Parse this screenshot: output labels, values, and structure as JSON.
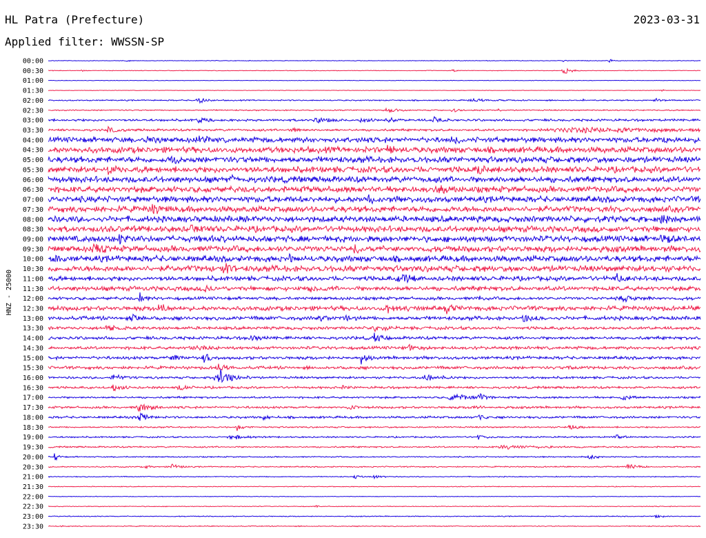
{
  "header": {
    "station": "HL Patra (Prefecture)",
    "date": "2023-03-31",
    "filter": "Applied filter: WWSSN-SP"
  },
  "chart_data": {
    "type": "line",
    "kind": "helicorder",
    "ylabel": "HNZ - 25000",
    "colors": {
      "even": "#1500e0",
      "odd": "#ee1b48"
    },
    "rows": [
      {
        "time": "00:00",
        "noise": 0.4,
        "events": [
          {
            "x": 0.12,
            "a": 2,
            "w": 0.004
          },
          {
            "x": 0.79,
            "a": 2,
            "w": 0.004
          },
          {
            "x": 0.86,
            "a": 4,
            "w": 0.004
          }
        ]
      },
      {
        "time": "00:30",
        "noise": 0.4,
        "events": [
          {
            "x": 0.05,
            "a": 2,
            "w": 0.004
          },
          {
            "x": 0.62,
            "a": 3,
            "w": 0.004
          },
          {
            "x": 0.79,
            "a": 6,
            "w": 0.012
          }
        ]
      },
      {
        "time": "01:00",
        "noise": 0.3,
        "events": []
      },
      {
        "time": "01:30",
        "noise": 0.3,
        "events": [
          {
            "x": 0.94,
            "a": 2,
            "w": 0.004
          }
        ]
      },
      {
        "time": "02:00",
        "noise": 0.8,
        "events": [
          {
            "x": 0.23,
            "a": 6,
            "w": 0.012
          },
          {
            "x": 0.65,
            "a": 2,
            "w": 0.03
          },
          {
            "x": 0.82,
            "a": 2,
            "w": 0.004
          },
          {
            "x": 0.93,
            "a": 4,
            "w": 0.008
          }
        ]
      },
      {
        "time": "02:30",
        "noise": 0.8,
        "events": [
          {
            "x": 0.52,
            "a": 5,
            "w": 0.012
          },
          {
            "x": 0.62,
            "a": 3,
            "w": 0.01
          },
          {
            "x": 0.69,
            "a": 2,
            "w": 0.006
          }
        ]
      },
      {
        "time": "03:00",
        "noise": 1.5,
        "events": [
          {
            "x": 0.23,
            "a": 6,
            "w": 0.01
          },
          {
            "x": 0.41,
            "a": 4,
            "w": 0.02
          },
          {
            "x": 0.48,
            "a": 4,
            "w": 0.01
          },
          {
            "x": 0.52,
            "a": 5,
            "w": 0.012
          },
          {
            "x": 0.59,
            "a": 4,
            "w": 0.01
          }
        ]
      },
      {
        "time": "03:30",
        "noise": 1.5,
        "events": [
          {
            "x": 0.09,
            "a": 5,
            "w": 0.012
          },
          {
            "x": 0.37,
            "a": 4,
            "w": 0.01
          },
          {
            "x": 0.81,
            "a": 3,
            "w": 0.2
          }
        ]
      },
      {
        "time": "04:00",
        "noise": 3.5,
        "events": [
          {
            "x": 0.15,
            "a": 5,
            "w": 0.01
          },
          {
            "x": 0.23,
            "a": 5,
            "w": 0.01
          },
          {
            "x": 0.62,
            "a": 5,
            "w": 0.01
          },
          {
            "x": 0.94,
            "a": 5,
            "w": 0.01
          }
        ]
      },
      {
        "time": "04:30",
        "noise": 4,
        "events": [
          {
            "x": 0.52,
            "a": 6,
            "w": 0.01
          }
        ]
      },
      {
        "time": "05:00",
        "noise": 4,
        "events": [
          {
            "x": 0.19,
            "a": 6,
            "w": 0.01
          }
        ]
      },
      {
        "time": "05:30",
        "noise": 4,
        "events": [
          {
            "x": 0.09,
            "a": 6,
            "w": 0.01
          },
          {
            "x": 0.66,
            "a": 6,
            "w": 0.01
          }
        ]
      },
      {
        "time": "06:00",
        "noise": 4,
        "events": [
          {
            "x": 0.28,
            "a": 7,
            "w": 0.004
          }
        ]
      },
      {
        "time": "06:30",
        "noise": 4,
        "events": [
          {
            "x": 0.6,
            "a": 6,
            "w": 0.01
          }
        ]
      },
      {
        "time": "07:00",
        "noise": 4,
        "events": [
          {
            "x": 0.49,
            "a": 6,
            "w": 0.01
          }
        ]
      },
      {
        "time": "07:30",
        "noise": 4,
        "events": [
          {
            "x": 0.16,
            "a": 6,
            "w": 0.01
          }
        ]
      },
      {
        "time": "08:00",
        "noise": 4,
        "events": [
          {
            "x": 0.94,
            "a": 6,
            "w": 0.01
          }
        ]
      },
      {
        "time": "08:30",
        "noise": 4,
        "events": [
          {
            "x": 0.22,
            "a": 6,
            "w": 0.01
          }
        ]
      },
      {
        "time": "09:00",
        "noise": 4,
        "events": [
          {
            "x": 0.11,
            "a": 7,
            "w": 0.01
          },
          {
            "x": 0.25,
            "a": 8,
            "w": 0.004
          },
          {
            "x": 0.94,
            "a": 6,
            "w": 0.012
          }
        ]
      },
      {
        "time": "09:30",
        "noise": 4,
        "events": [
          {
            "x": 0.07,
            "a": 6,
            "w": 0.01
          },
          {
            "x": 0.47,
            "a": 5,
            "w": 0.01
          }
        ]
      },
      {
        "time": "10:00",
        "noise": 4,
        "events": [
          {
            "x": 0.01,
            "a": 6,
            "w": 0.006
          },
          {
            "x": 0.37,
            "a": 6,
            "w": 0.004
          }
        ]
      },
      {
        "time": "10:30",
        "noise": 4,
        "events": [
          {
            "x": 0.27,
            "a": 6,
            "w": 0.01
          }
        ]
      },
      {
        "time": "11:00",
        "noise": 3,
        "events": [
          {
            "x": 0.54,
            "a": 7,
            "w": 0.02
          },
          {
            "x": 0.87,
            "a": 6,
            "w": 0.01
          }
        ]
      },
      {
        "time": "11:30",
        "noise": 3,
        "events": [
          {
            "x": 0.24,
            "a": 7,
            "w": 0.006
          },
          {
            "x": 0.4,
            "a": 6,
            "w": 0.01
          }
        ]
      },
      {
        "time": "12:00",
        "noise": 2,
        "events": [
          {
            "x": 0.14,
            "a": 8,
            "w": 0.008
          },
          {
            "x": 0.66,
            "a": 6,
            "w": 0.006
          },
          {
            "x": 0.88,
            "a": 4,
            "w": 0.02
          }
        ]
      },
      {
        "time": "12:30",
        "noise": 3,
        "events": [
          {
            "x": 0.17,
            "a": 6,
            "w": 0.01
          },
          {
            "x": 0.52,
            "a": 5,
            "w": 0.02
          },
          {
            "x": 0.61,
            "a": 6,
            "w": 0.01
          }
        ]
      },
      {
        "time": "13:00",
        "noise": 2.5,
        "events": [
          {
            "x": 0.13,
            "a": 4,
            "w": 0.01
          },
          {
            "x": 0.41,
            "a": 6,
            "w": 0.012
          },
          {
            "x": 0.45,
            "a": 5,
            "w": 0.012
          },
          {
            "x": 0.73,
            "a": 5,
            "w": 0.012
          }
        ]
      },
      {
        "time": "13:30",
        "noise": 2,
        "events": [
          {
            "x": 0.09,
            "a": 5,
            "w": 0.012
          },
          {
            "x": 0.5,
            "a": 4,
            "w": 0.02
          }
        ]
      },
      {
        "time": "14:00",
        "noise": 2,
        "events": [
          {
            "x": 0.31,
            "a": 5,
            "w": 0.01
          },
          {
            "x": 0.5,
            "a": 5,
            "w": 0.012
          }
        ]
      },
      {
        "time": "14:30",
        "noise": 2,
        "events": [
          {
            "x": 0.22,
            "a": 4,
            "w": 0.02
          },
          {
            "x": 0.55,
            "a": 5,
            "w": 0.014
          }
        ]
      },
      {
        "time": "15:00",
        "noise": 2,
        "events": [
          {
            "x": 0.19,
            "a": 5,
            "w": 0.01
          },
          {
            "x": 0.24,
            "a": 6,
            "w": 0.014
          },
          {
            "x": 0.48,
            "a": 7,
            "w": 0.01
          }
        ]
      },
      {
        "time": "15:30",
        "noise": 2,
        "events": [
          {
            "x": 0.26,
            "a": 5,
            "w": 0.014
          },
          {
            "x": 0.8,
            "a": 4,
            "w": 0.01
          }
        ]
      },
      {
        "time": "16:00",
        "noise": 1.5,
        "events": [
          {
            "x": 0.1,
            "a": 4,
            "w": 0.02
          },
          {
            "x": 0.26,
            "a": 13,
            "w": 0.022
          },
          {
            "x": 0.58,
            "a": 5,
            "w": 0.02
          }
        ]
      },
      {
        "time": "16:30",
        "noise": 1.5,
        "events": [
          {
            "x": 0.1,
            "a": 5,
            "w": 0.012
          },
          {
            "x": 0.2,
            "a": 5,
            "w": 0.01
          },
          {
            "x": 0.45,
            "a": 3,
            "w": 0.01
          }
        ]
      },
      {
        "time": "17:00",
        "noise": 1.3,
        "events": [
          {
            "x": 0.62,
            "a": 5,
            "w": 0.03
          },
          {
            "x": 0.66,
            "a": 5,
            "w": 0.01
          },
          {
            "x": 0.88,
            "a": 5,
            "w": 0.012
          }
        ]
      },
      {
        "time": "17:30",
        "noise": 1.5,
        "events": [
          {
            "x": 0.14,
            "a": 7,
            "w": 0.02
          },
          {
            "x": 0.46,
            "a": 4,
            "w": 0.01
          },
          {
            "x": 0.65,
            "a": 3,
            "w": 0.01
          }
        ]
      },
      {
        "time": "18:00",
        "noise": 1.5,
        "events": [
          {
            "x": 0.14,
            "a": 6,
            "w": 0.012
          },
          {
            "x": 0.33,
            "a": 4,
            "w": 0.01
          },
          {
            "x": 0.66,
            "a": 3,
            "w": 0.01
          }
        ]
      },
      {
        "time": "18:30",
        "noise": 1,
        "events": [
          {
            "x": 0.29,
            "a": 5,
            "w": 0.01
          },
          {
            "x": 0.8,
            "a": 4,
            "w": 0.012
          }
        ]
      },
      {
        "time": "19:00",
        "noise": 1,
        "events": [
          {
            "x": 0.28,
            "a": 4,
            "w": 0.02
          },
          {
            "x": 0.66,
            "a": 5,
            "w": 0.01
          },
          {
            "x": 0.87,
            "a": 4,
            "w": 0.01
          }
        ]
      },
      {
        "time": "19:30",
        "noise": 1,
        "events": [
          {
            "x": 0.7,
            "a": 3,
            "w": 0.05
          }
        ]
      },
      {
        "time": "20:00",
        "noise": 0.8,
        "events": [
          {
            "x": 0.01,
            "a": 7,
            "w": 0.005
          },
          {
            "x": 0.83,
            "a": 4,
            "w": 0.012
          }
        ]
      },
      {
        "time": "20:30",
        "noise": 0.8,
        "events": [
          {
            "x": 0.15,
            "a": 4,
            "w": 0.006
          },
          {
            "x": 0.19,
            "a": 4,
            "w": 0.01
          },
          {
            "x": 0.89,
            "a": 6,
            "w": 0.012
          }
        ]
      },
      {
        "time": "21:00",
        "noise": 0.6,
        "events": [
          {
            "x": 0.47,
            "a": 3,
            "w": 0.01
          },
          {
            "x": 0.5,
            "a": 3,
            "w": 0.01
          }
        ]
      },
      {
        "time": "21:30",
        "noise": 0.5,
        "events": []
      },
      {
        "time": "22:00",
        "noise": 0.4,
        "events": []
      },
      {
        "time": "22:30",
        "noise": 0.5,
        "events": [
          {
            "x": 0.41,
            "a": 2,
            "w": 0.004
          }
        ]
      },
      {
        "time": "23:00",
        "noise": 0.6,
        "events": [
          {
            "x": 0.93,
            "a": 3,
            "w": 0.01
          }
        ]
      },
      {
        "time": "23:30",
        "noise": 0.6,
        "events": [
          {
            "x": 0.02,
            "a": 2,
            "w": 0.004
          }
        ]
      }
    ]
  }
}
